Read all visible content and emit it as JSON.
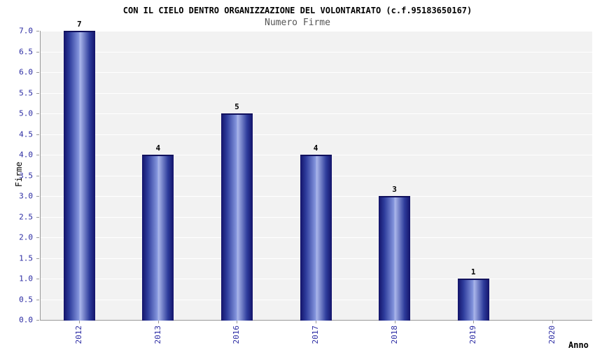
{
  "chart_data": {
    "type": "bar",
    "title": "CON IL CIELO DENTRO ORGANIZZAZIONE DEL VOLONTARIATO (c.f.95183650167)",
    "subtitle": "Numero Firme",
    "xlabel": "Anno",
    "ylabel": "Firme",
    "categories": [
      "2012",
      "2013",
      "2016",
      "2017",
      "2018",
      "2019",
      "2020"
    ],
    "values": [
      7,
      4,
      5,
      4,
      3,
      1,
      0
    ],
    "ylim": [
      0,
      7
    ],
    "ytick_step": 0.5,
    "grid": true,
    "legend": "none",
    "colors": {
      "bar_edge": "#13136a",
      "bar_center": "#aab6ea",
      "tick_label": "#2b2ba3",
      "value_label": "#000000",
      "plot_background": "#f2f2f2",
      "gridline": "#ffffff",
      "title": "#000000",
      "subtitle": "#555555"
    }
  }
}
